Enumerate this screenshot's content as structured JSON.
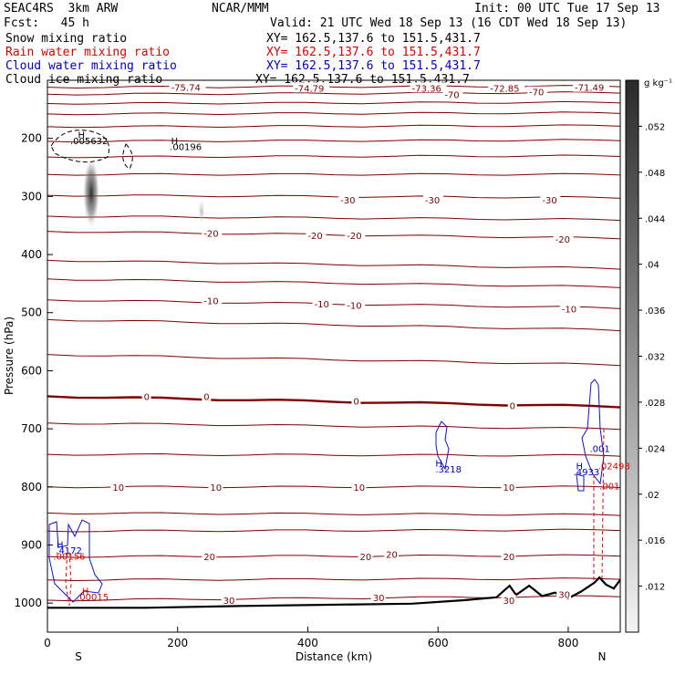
{
  "header": {
    "model": "SEAC4RS  3km ARW",
    "org": "NCAR/MMM",
    "init": "Init: 00 UTC Tue 17 Sep 13",
    "fcst": "Fcst:   45 h",
    "valid": "Valid: 21 UTC Wed 18 Sep 13 (16 CDT Wed 18 Sep 13)",
    "fields": [
      {
        "name": "Snow mixing ratio",
        "xy": "XY= 162.5,137.6 to 151.5,431.7",
        "color": "#000000"
      },
      {
        "name": "Rain water mixing ratio",
        "xy": "XY= 162.5,137.6 to 151.5,431.7",
        "color": "#e00000"
      },
      {
        "name": "Cloud water mixing ratio",
        "xy": "XY= 162.5,137.6 to 151.5,431.7",
        "color": "#0000c8"
      },
      {
        "name": "Cloud ice mixing ratio",
        "xy": "XY= 162.5,137.6 to 151.5,431.7",
        "color": "#000000"
      }
    ]
  },
  "chart_data": {
    "type": "cross-section",
    "xlabel": "Distance (km)",
    "ylabel": "Pressure (hPa)",
    "xlim": [
      0,
      880
    ],
    "ylim": [
      1050,
      100
    ],
    "x_ticks": [
      0,
      200,
      400,
      600,
      800
    ],
    "y_ticks": [
      200,
      300,
      400,
      500,
      600,
      700,
      800,
      900,
      1000
    ],
    "endpoint_labels": {
      "left": "S",
      "right": "N"
    },
    "colorbar": {
      "unit": "g kg⁻¹",
      "ticks": [
        ".052",
        ".048",
        ".044",
        ".04",
        ".036",
        ".032",
        ".028",
        ".024",
        ".02",
        ".016",
        ".012"
      ],
      "tick_values": [
        0.052,
        0.048,
        0.044,
        0.04,
        0.036,
        0.032,
        0.028,
        0.024,
        0.02,
        0.016,
        0.012
      ],
      "min": 0.008,
      "max": 0.056
    },
    "temperature_contours": {
      "color": "#800000",
      "labeled": [
        {
          "value": "-75.74",
          "x": 190,
          "p": 112
        },
        {
          "value": "-74.79",
          "x": 380,
          "p": 113
        },
        {
          "value": "-73.36",
          "x": 560,
          "p": 113
        },
        {
          "value": "-72.85",
          "x": 680,
          "p": 113
        },
        {
          "value": "-71.49",
          "x": 810,
          "p": 112
        },
        {
          "value": "-70",
          "x": 610,
          "p": 124
        },
        {
          "value": "-70",
          "x": 740,
          "p": 120
        },
        {
          "value": "-30",
          "x": 450,
          "p": 306
        },
        {
          "value": "-30",
          "x": 580,
          "p": 306
        },
        {
          "value": "-30",
          "x": 760,
          "p": 306
        },
        {
          "value": "-20",
          "x": 240,
          "p": 363
        },
        {
          "value": "-20",
          "x": 400,
          "p": 367
        },
        {
          "value": "-20",
          "x": 460,
          "p": 367
        },
        {
          "value": "-20",
          "x": 780,
          "p": 373
        },
        {
          "value": "-10",
          "x": 240,
          "p": 479
        },
        {
          "value": "-10",
          "x": 410,
          "p": 485
        },
        {
          "value": "-10",
          "x": 460,
          "p": 487
        },
        {
          "value": "-10",
          "x": 790,
          "p": 493
        },
        {
          "value": "0",
          "x": 148,
          "p": 644
        },
        {
          "value": "0",
          "x": 240,
          "p": 644
        },
        {
          "value": "0",
          "x": 470,
          "p": 652
        },
        {
          "value": "0",
          "x": 710,
          "p": 660
        },
        {
          "value": "10",
          "x": 100,
          "p": 800
        },
        {
          "value": "10",
          "x": 250,
          "p": 800
        },
        {
          "value": "10",
          "x": 470,
          "p": 800
        },
        {
          "value": "10",
          "x": 700,
          "p": 800
        },
        {
          "value": "20",
          "x": 240,
          "p": 920
        },
        {
          "value": "20",
          "x": 480,
          "p": 920
        },
        {
          "value": "20",
          "x": 520,
          "p": 916
        },
        {
          "value": "20",
          "x": 700,
          "p": 920
        },
        {
          "value": "30",
          "x": 270,
          "p": 995
        },
        {
          "value": "30",
          "x": 500,
          "p": 990
        },
        {
          "value": "30",
          "x": 700,
          "p": 995
        },
        {
          "value": "30",
          "x": 785,
          "p": 985
        }
      ]
    },
    "annotations": [
      {
        "text": "H",
        "x": 47,
        "p": 200,
        "color": "#000000"
      },
      {
        "text": ".005632",
        "x": 35,
        "p": 210,
        "color": "#000000"
      },
      {
        "text": "H",
        "x": 190,
        "p": 210,
        "color": "#000000"
      },
      {
        "text": ".00196",
        "x": 188,
        "p": 220,
        "color": "#000000"
      },
      {
        "text": "H",
        "x": 596,
        "p": 765,
        "color": "#0000c8"
      },
      {
        "text": ".3218",
        "x": 596,
        "p": 775,
        "color": "#0000c8"
      },
      {
        "text": ".001",
        "x": 833,
        "p": 740,
        "color": "#0000c8"
      },
      {
        "text": "H",
        "x": 812,
        "p": 770,
        "color": "#0000c8"
      },
      {
        "text": ".4933",
        "x": 808,
        "p": 780,
        "color": "#0000c8"
      },
      {
        "text": ".02498",
        "x": 846,
        "p": 770,
        "color": "#e00000"
      },
      {
        "text": ".001",
        "x": 848,
        "p": 804,
        "color": "#e00000"
      },
      {
        "text": "H",
        "x": 14,
        "p": 905,
        "color": "#0000c8"
      },
      {
        "text": ".4172",
        "x": 13,
        "p": 915,
        "color": "#0000c8"
      },
      {
        "text": ".00156",
        "x": 9,
        "p": 925,
        "color": "#e00000"
      },
      {
        "text": "H",
        "x": 53,
        "p": 985,
        "color": "#e00000"
      },
      {
        "text": ".00015",
        "x": 45,
        "p": 995,
        "color": "#e00000"
      }
    ]
  }
}
